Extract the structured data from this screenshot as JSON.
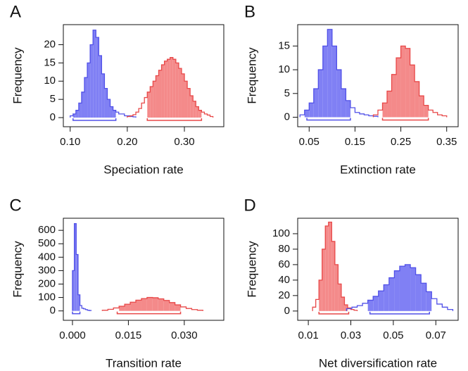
{
  "chart_data": [
    {
      "type": "histogram",
      "label": "A",
      "ylabel": "Frequency",
      "xlabel": "Speciation rate",
      "xlim": [
        0.088,
        0.369
      ],
      "ylim": [
        -2.5,
        25.5
      ],
      "xticks": [
        {
          "value": 0.1,
          "label": "0.10"
        },
        {
          "value": 0.2,
          "label": "0.20"
        },
        {
          "value": 0.3,
          "label": "0.30"
        }
      ],
      "yticks": [
        0,
        5,
        10,
        15,
        20
      ],
      "series": [
        {
          "color": "#5050e8",
          "hpd": [
            0.105,
            0.18
          ],
          "bins": [
            0.1,
            0.105,
            0.11,
            0.115,
            0.12,
            0.125,
            0.13,
            0.135,
            0.14,
            0.145,
            0.15,
            0.155,
            0.16,
            0.165,
            0.17,
            0.175,
            0.18,
            0.185,
            0.19,
            0.195,
            0.2,
            0.205,
            0.21,
            0.215
          ],
          "values": [
            0.5,
            1,
            2,
            4,
            7,
            11,
            15,
            20,
            24,
            22,
            17,
            12,
            8,
            5,
            3,
            2,
            1.5,
            1,
            1,
            0.5,
            0.5,
            0.3,
            0.2
          ]
        },
        {
          "color": "#e84848",
          "hpd": [
            0.235,
            0.33
          ],
          "bins": [
            0.2,
            0.205,
            0.21,
            0.215,
            0.22,
            0.225,
            0.23,
            0.235,
            0.24,
            0.245,
            0.25,
            0.255,
            0.26,
            0.265,
            0.27,
            0.275,
            0.28,
            0.285,
            0.29,
            0.295,
            0.3,
            0.305,
            0.31,
            0.315,
            0.32,
            0.325,
            0.33,
            0.335,
            0.34,
            0.345,
            0.35
          ],
          "values": [
            0.3,
            0.5,
            0.8,
            1.5,
            2.5,
            4,
            5.5,
            7,
            8.5,
            10,
            11.5,
            13,
            14.5,
            15.5,
            16,
            16.5,
            16,
            15,
            13.5,
            12,
            10,
            8,
            6,
            4.5,
            3,
            2,
            1.5,
            1,
            0.7,
            0.3
          ]
        }
      ]
    },
    {
      "type": "histogram",
      "label": "B",
      "ylabel": "Frequency",
      "xlabel": "Extinction rate",
      "xlim": [
        0.025,
        0.375
      ],
      "ylim": [
        -2,
        19.5
      ],
      "xticks": [
        0.05,
        0.15,
        0.25,
        0.35
      ],
      "yticks": [
        0,
        5,
        10,
        15
      ],
      "series": [
        {
          "color": "#5050e8",
          "hpd": [
            0.045,
            0.14
          ],
          "bins": [
            0.03,
            0.04,
            0.05,
            0.06,
            0.07,
            0.08,
            0.09,
            0.1,
            0.11,
            0.12,
            0.13,
            0.14,
            0.15,
            0.16,
            0.17,
            0.18,
            0.19,
            0.2
          ],
          "values": [
            0.5,
            1.5,
            3,
            6,
            10,
            15,
            18.5,
            15,
            10,
            6,
            3.5,
            2,
            1,
            0.7,
            0.5,
            0.3,
            0.2
          ]
        },
        {
          "color": "#e84848",
          "hpd": [
            0.21,
            0.31
          ],
          "bins": [
            0.19,
            0.2,
            0.21,
            0.22,
            0.23,
            0.24,
            0.25,
            0.26,
            0.27,
            0.28,
            0.29,
            0.3,
            0.31,
            0.32,
            0.33,
            0.34,
            0.35
          ],
          "values": [
            0.5,
            1.5,
            3,
            5.5,
            9,
            12.5,
            15,
            14.5,
            11,
            7.5,
            4.5,
            2.5,
            1.5,
            1,
            0.5,
            0.3
          ]
        }
      ]
    },
    {
      "type": "histogram",
      "label": "C",
      "ylabel": "Frequency",
      "xlabel": "Transition rate",
      "xlim": [
        -0.00245,
        0.0406
      ],
      "ylim": [
        -70,
        690
      ],
      "xticks": [
        {
          "value": 0,
          "label": "0.000"
        },
        {
          "value": 0.015,
          "label": "0.015"
        },
        {
          "value": 0.03,
          "label": "0.030"
        }
      ],
      "yticks": [
        0,
        100,
        200,
        300,
        400,
        500,
        600
      ],
      "series": [
        {
          "color": "#5050e8",
          "hpd": [
            0,
            0.002
          ],
          "bins": [
            0,
            0.0005,
            0.001,
            0.0015,
            0.002,
            0.0025,
            0.003,
            0.0035,
            0.004,
            0.0045,
            0.005
          ],
          "values": [
            300,
            650,
            420,
            120,
            40,
            20,
            15,
            10,
            5,
            3
          ]
        },
        {
          "color": "#e84848",
          "hpd": [
            0.012,
            0.029
          ],
          "bins": [
            0.008,
            0.0095,
            0.011,
            0.0125,
            0.014,
            0.0155,
            0.017,
            0.0185,
            0.02,
            0.0215,
            0.023,
            0.0245,
            0.026,
            0.0275,
            0.029,
            0.0305,
            0.032,
            0.0335,
            0.035
          ],
          "values": [
            5,
            12,
            22,
            35,
            50,
            65,
            80,
            92,
            100,
            98,
            90,
            78,
            62,
            45,
            30,
            18,
            10,
            5
          ]
        }
      ]
    },
    {
      "type": "histogram",
      "label": "D",
      "ylabel": "Frequency",
      "xlabel": "Net diversification rate",
      "xlim": [
        0.005,
        0.0805
      ],
      "ylim": [
        -12,
        120
      ],
      "xticks": [
        0.01,
        0.03,
        0.05,
        0.07
      ],
      "yticks": [
        0,
        20,
        40,
        60,
        80,
        100
      ],
      "series": [
        {
          "color": "#e84848",
          "hpd": [
            0.015,
            0.029
          ],
          "bins": [
            0.012,
            0.0135,
            0.015,
            0.0165,
            0.018,
            0.0195,
            0.021,
            0.0225,
            0.024,
            0.0255,
            0.027,
            0.0285,
            0.03,
            0.0315,
            0.033
          ],
          "values": [
            5,
            15,
            40,
            80,
            110,
            115,
            90,
            60,
            35,
            18,
            8,
            4,
            2,
            1
          ]
        },
        {
          "color": "#5050e8",
          "hpd": [
            0.039,
            0.067
          ],
          "bins": [
            0.028,
            0.0305,
            0.033,
            0.0355,
            0.038,
            0.0405,
            0.043,
            0.0455,
            0.048,
            0.0505,
            0.053,
            0.0555,
            0.058,
            0.0605,
            0.063,
            0.0655,
            0.068,
            0.0705,
            0.073,
            0.0755,
            0.078
          ],
          "values": [
            3,
            5,
            7,
            10,
            14,
            19,
            26,
            34,
            43,
            52,
            58,
            60,
            56,
            47,
            36,
            25,
            16,
            9,
            5,
            2
          ]
        }
      ]
    }
  ]
}
